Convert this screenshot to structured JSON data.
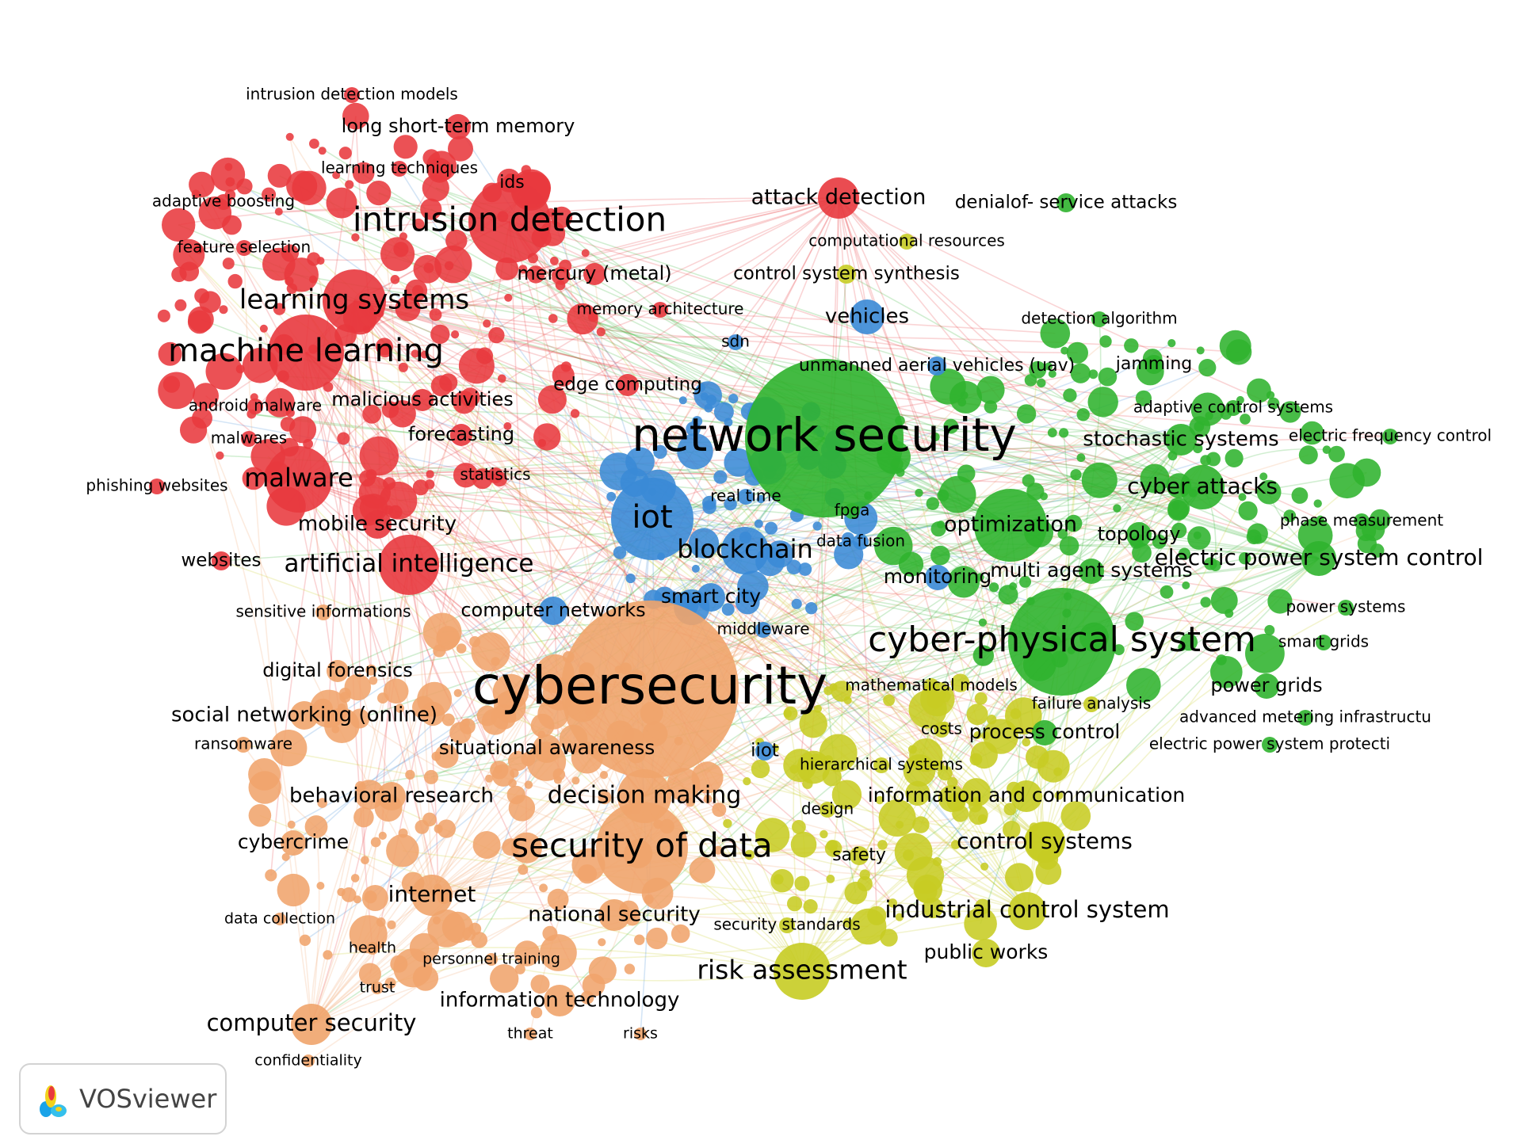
{
  "colors": {
    "red": "#e8393e",
    "green": "#2fb32e",
    "blue": "#3a8ad6",
    "yellow": "#c7cc23",
    "orange": "#f0a46c"
  },
  "logo": {
    "text": "VOSviewer",
    "icon": "vosviewer-logo-icon"
  },
  "network": {
    "nodes": [
      {
        "label": "network security",
        "cluster": "green",
        "weight": 100
      },
      {
        "label": "cybersecurity",
        "cluster": "orange",
        "weight": 100
      },
      {
        "label": "cyber-physical system",
        "cluster": "green",
        "weight": 70
      },
      {
        "label": "intrusion detection",
        "cluster": "red",
        "weight": 60
      },
      {
        "label": "machine learning",
        "cluster": "red",
        "weight": 55
      },
      {
        "label": "security of data",
        "cluster": "orange",
        "weight": 60
      },
      {
        "label": "learning systems",
        "cluster": "red",
        "weight": 45
      },
      {
        "label": "iot",
        "cluster": "blue",
        "weight": 50
      },
      {
        "label": "malware",
        "cluster": "red",
        "weight": 38
      },
      {
        "label": "artificial intelligence",
        "cluster": "red",
        "weight": 38
      },
      {
        "label": "blockchain",
        "cluster": "blue",
        "weight": 32
      },
      {
        "label": "optimization",
        "cluster": "green",
        "weight": 40
      },
      {
        "label": "risk assessment",
        "cluster": "yellow",
        "weight": 40
      },
      {
        "label": "decision making",
        "cluster": "orange",
        "weight": 36
      },
      {
        "label": "attack detection",
        "cluster": "red",
        "weight": 30
      },
      {
        "label": "cyber attacks",
        "cluster": "green",
        "weight": 30
      },
      {
        "label": "control systems",
        "cluster": "yellow",
        "weight": 28
      },
      {
        "label": "industrial control system",
        "cluster": "yellow",
        "weight": 26
      },
      {
        "label": "internet",
        "cluster": "orange",
        "weight": 28
      },
      {
        "label": "computer security",
        "cluster": "orange",
        "weight": 28
      },
      {
        "label": "electric power system control",
        "cluster": "green",
        "weight": 24
      },
      {
        "label": "stochastic systems",
        "cluster": "green",
        "weight": 22
      },
      {
        "label": "information and communication",
        "cluster": "yellow",
        "weight": 22
      },
      {
        "label": "national security",
        "cluster": "orange",
        "weight": 22
      },
      {
        "label": "information technology",
        "cluster": "orange",
        "weight": 22
      },
      {
        "label": "vehicles",
        "cluster": "blue",
        "weight": 22
      },
      {
        "label": "situational awareness",
        "cluster": "orange",
        "weight": 20
      },
      {
        "label": "social networking (online)",
        "cluster": "orange",
        "weight": 20
      },
      {
        "label": "behavioral research",
        "cluster": "orange",
        "weight": 20
      },
      {
        "label": "mobile security",
        "cluster": "red",
        "weight": 20
      },
      {
        "label": "multi agent systems",
        "cluster": "green",
        "weight": 20
      },
      {
        "label": "monitoring",
        "cluster": "blue",
        "weight": 20
      },
      {
        "label": "smart city",
        "cluster": "blue",
        "weight": 20
      },
      {
        "label": "computer networks",
        "cluster": "blue",
        "weight": 20
      },
      {
        "label": "process control",
        "cluster": "green",
        "weight": 20
      },
      {
        "label": "long short-term memory",
        "cluster": "red",
        "weight": 20
      },
      {
        "label": "public works",
        "cluster": "yellow",
        "weight": 20
      },
      {
        "label": "topology",
        "cluster": "green",
        "weight": 20
      },
      {
        "label": "power grids",
        "cluster": "green",
        "weight": 20
      },
      {
        "label": "cybercrime",
        "cluster": "orange",
        "weight": 20
      },
      {
        "label": "digital forensics",
        "cluster": "orange",
        "weight": 20
      },
      {
        "label": "malicious activities",
        "cluster": "red",
        "weight": 20
      },
      {
        "label": "forecasting",
        "cluster": "red",
        "weight": 20
      },
      {
        "label": "mercury (metal)",
        "cluster": "red",
        "weight": 20
      },
      {
        "label": "edge computing",
        "cluster": "red",
        "weight": 20
      },
      {
        "label": "unmanned aerial vehicles (uav)",
        "cluster": "blue",
        "weight": 18
      },
      {
        "label": "denialof- service attacks",
        "cluster": "green",
        "weight": 18
      },
      {
        "label": "control system synthesis",
        "cluster": "yellow",
        "weight": 18
      },
      {
        "label": "jamming",
        "cluster": "green",
        "weight": 18
      },
      {
        "label": "websites",
        "cluster": "red",
        "weight": 18
      },
      {
        "label": "ids",
        "cluster": "red",
        "weight": 18
      },
      {
        "label": "iiot",
        "cluster": "blue",
        "weight": 18
      },
      {
        "label": "safety",
        "cluster": "yellow",
        "weight": 18
      },
      {
        "label": "smart grids",
        "cluster": "green",
        "weight": 16
      },
      {
        "label": "phase measurement",
        "cluster": "green",
        "weight": 16
      },
      {
        "label": "power systems",
        "cluster": "green",
        "weight": 16
      },
      {
        "label": "detection algorithm",
        "cluster": "green",
        "weight": 16
      },
      {
        "label": "adaptive control systems",
        "cluster": "green",
        "weight": 16
      },
      {
        "label": "electric frequency control",
        "cluster": "green",
        "weight": 16
      },
      {
        "label": "advanced metering infrastructu",
        "cluster": "green",
        "weight": 16
      },
      {
        "label": "electric power system protecti",
        "cluster": "green",
        "weight": 16
      },
      {
        "label": "failure analysis",
        "cluster": "yellow",
        "weight": 16
      },
      {
        "label": "costs",
        "cluster": "yellow",
        "weight": 16
      },
      {
        "label": "design",
        "cluster": "yellow",
        "weight": 16
      },
      {
        "label": "hierarchical systems",
        "cluster": "yellow",
        "weight": 16
      },
      {
        "label": "mathematical models",
        "cluster": "yellow",
        "weight": 16
      },
      {
        "label": "security standards",
        "cluster": "yellow",
        "weight": 16
      },
      {
        "label": "computational resources",
        "cluster": "yellow",
        "weight": 16
      },
      {
        "label": "memory architecture",
        "cluster": "red",
        "weight": 16
      },
      {
        "label": "sdn",
        "cluster": "blue",
        "weight": 16
      },
      {
        "label": "real time",
        "cluster": "blue",
        "weight": 16
      },
      {
        "label": "fpga",
        "cluster": "green",
        "weight": 16
      },
      {
        "label": "data fusion",
        "cluster": "blue",
        "weight": 16
      },
      {
        "label": "middleware",
        "cluster": "blue",
        "weight": 16
      },
      {
        "label": "intrusion detection models",
        "cluster": "red",
        "weight": 16
      },
      {
        "label": "learning techniques",
        "cluster": "red",
        "weight": 16
      },
      {
        "label": "adaptive boosting",
        "cluster": "red",
        "weight": 16
      },
      {
        "label": "feature selection",
        "cluster": "red",
        "weight": 16
      },
      {
        "label": "android malware",
        "cluster": "red",
        "weight": 16
      },
      {
        "label": "malwares",
        "cluster": "red",
        "weight": 16
      },
      {
        "label": "phishing websites",
        "cluster": "red",
        "weight": 16
      },
      {
        "label": "statistics",
        "cluster": "red",
        "weight": 16
      },
      {
        "label": "sensitive informations",
        "cluster": "orange",
        "weight": 16
      },
      {
        "label": "ransomware",
        "cluster": "orange",
        "weight": 16
      },
      {
        "label": "data collection",
        "cluster": "orange",
        "weight": 14
      },
      {
        "label": "health",
        "cluster": "orange",
        "weight": 14
      },
      {
        "label": "trust",
        "cluster": "orange",
        "weight": 14
      },
      {
        "label": "personnel training",
        "cluster": "orange",
        "weight": 14
      },
      {
        "label": "threat",
        "cluster": "orange",
        "weight": 14
      },
      {
        "label": "risks",
        "cluster": "orange",
        "weight": 14
      },
      {
        "label": "confidentiality",
        "cluster": "orange",
        "weight": 14
      }
    ]
  }
}
